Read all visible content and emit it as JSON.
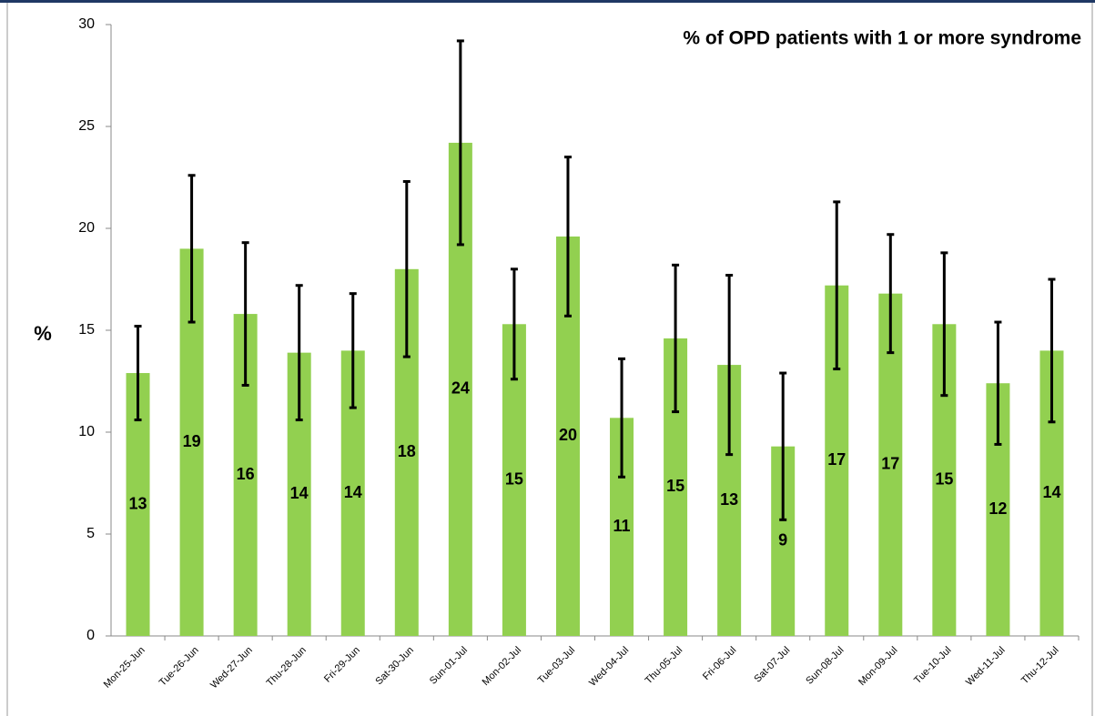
{
  "chart_data": {
    "type": "bar",
    "title": "% of OPD patients with 1 or more syndrome",
    "y_label": "%",
    "categories": [
      "Mon-25-Jun",
      "Tue-26-Jun",
      "Wed-27-Jun",
      "Thu-28-Jun",
      "Fri-29-Jun",
      "Sat-30-Jun",
      "Sun-01-Jul",
      "Mon-02-Jul",
      "Tue-03-Jul",
      "Wed-04-Jul",
      "Thu-05-Jul",
      "Fri-06-Jul",
      "Sat-07-Jul",
      "Sun-08-Jul",
      "Mon-09-Jul",
      "Tue-10-Jul",
      "Wed-11-Jul",
      "Thu-12-Jul"
    ],
    "values": [
      12.9,
      19.0,
      15.8,
      13.9,
      14.0,
      18.0,
      24.2,
      15.3,
      19.6,
      10.7,
      14.6,
      13.3,
      9.3,
      17.2,
      16.8,
      15.3,
      12.4,
      14.0
    ],
    "value_labels": [
      "13",
      "19",
      "16",
      "14",
      "14",
      "18",
      "24",
      "15",
      "20",
      "11",
      "15",
      "13",
      "9",
      "17",
      "17",
      "15",
      "12",
      "14"
    ],
    "errors": [
      2.3,
      3.6,
      3.5,
      3.3,
      2.8,
      4.3,
      5.0,
      2.7,
      3.9,
      2.9,
      3.6,
      4.4,
      3.6,
      4.1,
      2.9,
      3.5,
      3.0,
      3.5
    ],
    "color": "#92d050",
    "error_color": "#000000",
    "ylim": [
      0,
      30
    ],
    "yticks": [
      0,
      5,
      10,
      15,
      20,
      25,
      30
    ],
    "grid": false
  }
}
